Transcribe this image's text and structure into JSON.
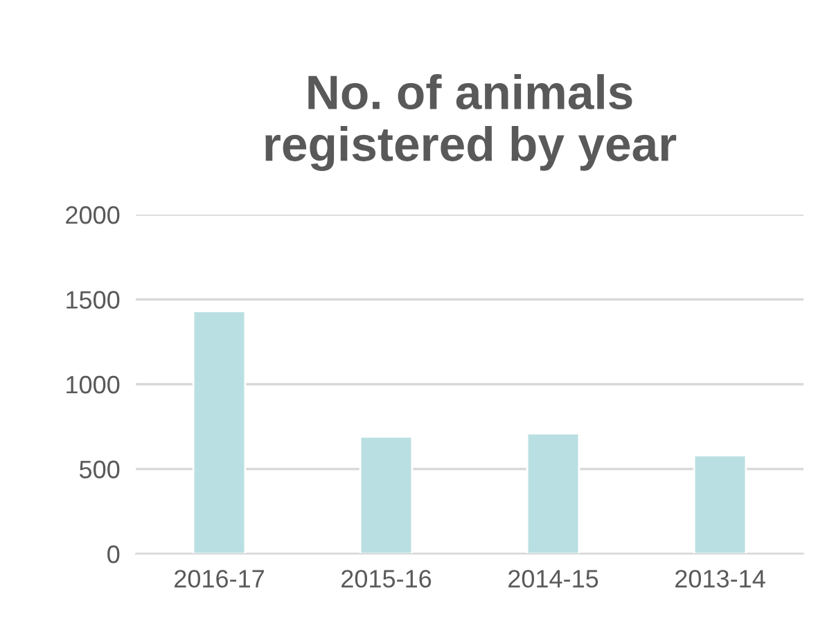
{
  "chart_data": {
    "type": "bar",
    "title": "No. of animals\nregistered by year",
    "categories": [
      "2016-17",
      "2015-16",
      "2014-15",
      "2013-14"
    ],
    "values": [
      1430,
      690,
      710,
      580
    ],
    "color": "#b9dfe2",
    "ylim": [
      0,
      2000
    ],
    "yticks": [
      0,
      500,
      1000,
      1500,
      2000
    ],
    "grid": "y"
  }
}
